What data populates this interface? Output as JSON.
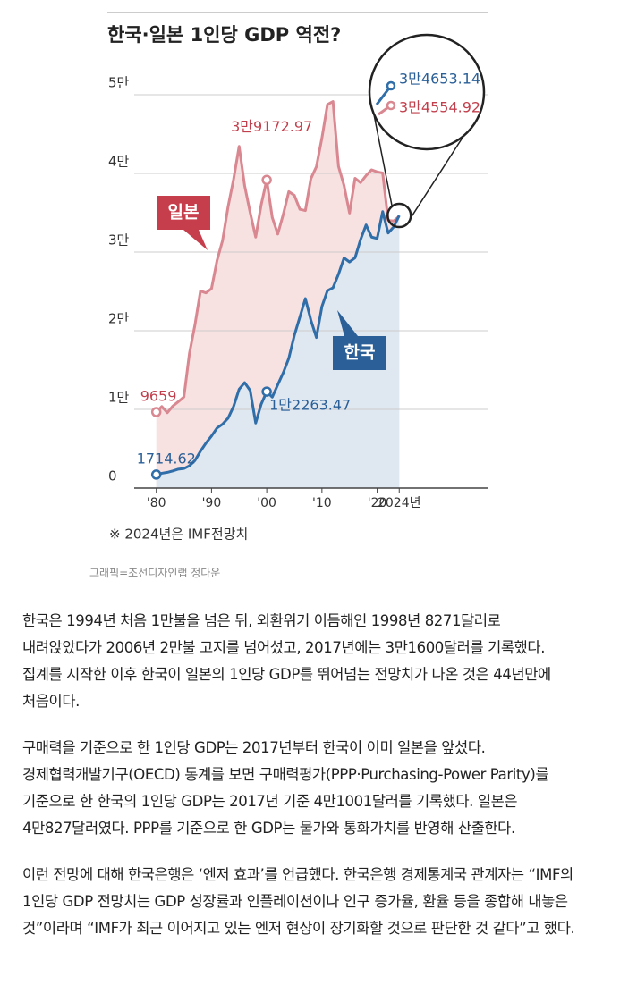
{
  "chart_data": {
    "type": "line",
    "title": "한국·일본 1인당 GDP 역전?",
    "x": [
      1980,
      1981,
      1982,
      1983,
      1984,
      1985,
      1986,
      1987,
      1988,
      1989,
      1990,
      1991,
      1992,
      1993,
      1994,
      1995,
      1996,
      1997,
      1998,
      1999,
      2000,
      2001,
      2002,
      2003,
      2004,
      2005,
      2006,
      2007,
      2008,
      2009,
      2010,
      2011,
      2012,
      2013,
      2014,
      2015,
      2016,
      2017,
      2018,
      2019,
      2020,
      2021,
      2022,
      2023,
      2024
    ],
    "xlim": [
      1976,
      2040
    ],
    "xticks": [
      {
        "value": 1980,
        "label": "'80"
      },
      {
        "value": 1990,
        "label": "'90"
      },
      {
        "value": 2000,
        "label": "'00"
      },
      {
        "value": 2010,
        "label": "'10"
      },
      {
        "value": 2020,
        "label": "'20"
      },
      {
        "value": 2024,
        "label": "2024년"
      }
    ],
    "ylim": [
      0,
      50000
    ],
    "yticks": [
      0,
      {
        "value": 10000,
        "label": "1만"
      },
      {
        "value": 20000,
        "label": "2만"
      },
      {
        "value": 30000,
        "label": "3만"
      },
      {
        "value": 40000,
        "label": "4만"
      },
      {
        "value": 50000,
        "label": "5만"
      }
    ],
    "grid": true,
    "series": [
      {
        "name": "일본",
        "color": "#d98790",
        "fill": "#f8e1e1",
        "values": [
          9659,
          10360,
          9578,
          10425,
          10984,
          11584,
          17111,
          20745,
          25051,
          24813,
          25359,
          28925,
          31465,
          35766,
          39269,
          43440,
          38437,
          35022,
          31903,
          36027,
          39172.97,
          34406,
          32289,
          34808,
          37688,
          37218,
          35434,
          35275,
          39339,
          40855,
          44508,
          48760,
          49145,
          40898,
          38475,
          34961,
          39375,
          38834,
          39727,
          40458,
          40193,
          40059,
          34017,
          33950,
          34554.92
        ],
        "value_labels": [
          "9659",
          null,
          null,
          null,
          null,
          null,
          null,
          null,
          null,
          null,
          null,
          null,
          null,
          null,
          null,
          null,
          null,
          null,
          null,
          null,
          "3만9172.97",
          null,
          null,
          null,
          null,
          null,
          null,
          null,
          null,
          null,
          null,
          null,
          null,
          null,
          null,
          null,
          null,
          null,
          null,
          null,
          null,
          null,
          null,
          null,
          "3만4554.92"
        ]
      },
      {
        "name": "한국",
        "color": "#2f6ea8",
        "fill": "#dfe7f1",
        "values": [
          1714.62,
          1883,
          2000,
          2184,
          2403,
          2482,
          2835,
          3510,
          4686,
          5717,
          6610,
          7637,
          8127,
          8885,
          10385,
          12565,
          13403,
          12398,
          8271,
          10672,
          12263.47,
          11563,
          13138,
          14673,
          16497,
          19403,
          21743,
          24087,
          21345,
          19143,
          23079,
          25096,
          25459,
          27180,
          29253,
          28737,
          29274,
          31600,
          33447,
          31902,
          31721,
          35142,
          32423,
          33192,
          34653.14
        ],
        "value_labels": [
          "1714.62",
          null,
          null,
          null,
          null,
          null,
          null,
          null,
          null,
          null,
          null,
          null,
          null,
          null,
          null,
          null,
          null,
          null,
          null,
          null,
          "1만2263.47",
          null,
          null,
          null,
          null,
          null,
          null,
          null,
          null,
          null,
          null,
          null,
          null,
          null,
          null,
          null,
          null,
          null,
          null,
          null,
          null,
          null,
          null,
          null,
          "3만4653.14"
        ]
      }
    ],
    "note": "※ 2024년은 IMF전망치"
  },
  "credit": "그래픽=조선디자인랩 정다운",
  "article": {
    "paragraphs": [
      "한국은 1994년 처음 1만불을 넘은 뒤, 외환위기 이듬해인 1998년 8271달러로 내려앉았다가 2006년 2만불 고지를 넘어섰고, 2017년에는 3만1600달러를 기록했다. 집계를 시작한 이후 한국이 일본의 1인당 GDP를 뛰어넘는 전망치가 나온 것은 44년만에 처음이다.",
      "구매력을 기준으로 한 1인당 GDP는 2017년부터 한국이 이미 일본을 앞섰다. 경제협력개발기구(OECD) 통계를 보면 구매력평가(PPP·Purchasing-Power Parity)를 기준으로 한 한국의 1인당 GDP는 2017년 기준 4만1001달러를 기록했다. 일본은 4만827달러였다. PPP를 기준으로 한 GDP는 물가와 통화가치를 반영해 산출한다.",
      "이런 전망에 대해 한국은행은 ‘엔저 효과’를 언급했다. 한국은행 경제통계국 관계자는 “IMF의 1인당 GDP 전망치는 GDP 성장률과 인플레이션이나 인구 증가율, 환율 등을 종합해 내놓은 것”이라며 “IMF가 최근 이어지고 있는 엔저 현상이 장기화할 것으로 판단한 것 같다”고 했다."
    ]
  }
}
